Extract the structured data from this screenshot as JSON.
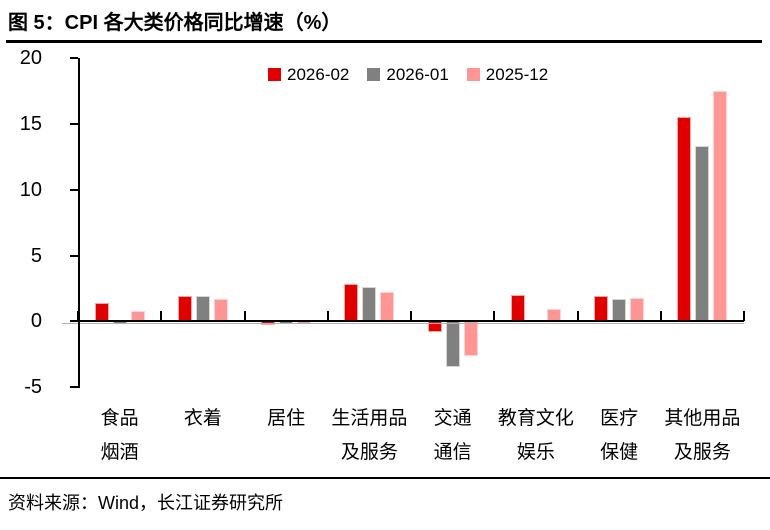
{
  "figure": {
    "title": "图 5：CPI 各大类价格同比增速（%）",
    "source": "资料来源：Wind，长江证券研究所"
  },
  "chart_data": {
    "type": "bar",
    "title": "图 5：CPI 各大类价格同比增速（%）",
    "categories": [
      "食品\n烟酒",
      "衣着",
      "居住",
      "生活用品\n及服务",
      "交通\n通信",
      "教育文化\n娱乐",
      "医疗\n保健",
      "其他用品\n及服务"
    ],
    "series": [
      {
        "name": "2026-02",
        "color": "#e00000",
        "edge": "#f2a6a6",
        "values": [
          1.4,
          1.9,
          -0.3,
          2.8,
          -0.8,
          2.0,
          1.9,
          15.5
        ]
      },
      {
        "name": "2026-01",
        "color": "#808080",
        "edge": "#d6d6d6",
        "values": [
          -0.2,
          1.9,
          -0.2,
          2.6,
          -3.5,
          0.0,
          1.7,
          13.3
        ]
      },
      {
        "name": "2025-12",
        "color": "#ff9696",
        "edge": "#ffd2d2",
        "values": [
          0.8,
          1.7,
          -0.2,
          2.2,
          -2.6,
          0.9,
          1.8,
          17.5
        ]
      }
    ],
    "ylim": [
      -5,
      20
    ],
    "yticks": [
      20,
      15,
      10,
      5,
      0,
      -5
    ],
    "xlabel": "",
    "ylabel": "",
    "grid": false,
    "legend_position": "top-center"
  }
}
